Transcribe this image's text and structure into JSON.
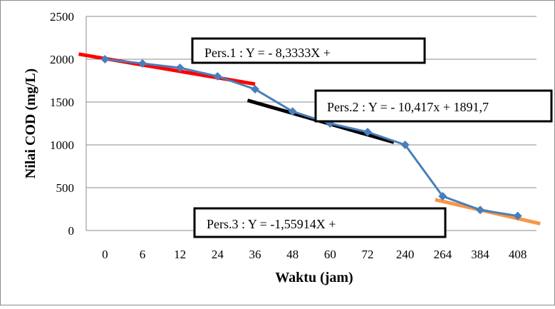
{
  "chart_data": {
    "type": "line",
    "xlabel": "Waktu (jam)",
    "ylabel": "Nilai  COD (mg/L)",
    "categories": [
      "0",
      "6",
      "12",
      "24",
      "36",
      "48",
      "60",
      "72",
      "240",
      "264",
      "384",
      "408"
    ],
    "ylim": [
      0,
      2500
    ],
    "yticks": [
      "0",
      "500",
      "1000",
      "1500",
      "2000",
      "2500"
    ],
    "grid": true,
    "series": [
      {
        "color": "#4a7ebb",
        "marker": "diamond",
        "values": [
          2000,
          1950,
          1900,
          1800,
          1650,
          1390,
          1250,
          1150,
          1000,
          400,
          240,
          170
        ]
      }
    ],
    "trendlines": [
      {
        "color": "#ff0000",
        "from": {
          "x": -0.7,
          "y": 2060
        },
        "to": {
          "x": 4.0,
          "y": 1710
        }
      },
      {
        "color": "#000000",
        "from": {
          "x": 3.8,
          "y": 1520
        },
        "to": {
          "x": 7.7,
          "y": 1030
        }
      },
      {
        "color": "#f79646",
        "from": {
          "x": 8.8,
          "y": 360
        },
        "to": {
          "x": 11.6,
          "y": 80
        }
      }
    ],
    "annotations": [
      {
        "id": "eq1",
        "text": "Pers.1 : Y = - 8,3333X +"
      },
      {
        "id": "eq2",
        "text": "Pers.2 : Y = - 10,417x + 1891,7"
      },
      {
        "id": "eq3",
        "text": "Pers.3 : Y = -1,55914X +"
      }
    ]
  }
}
